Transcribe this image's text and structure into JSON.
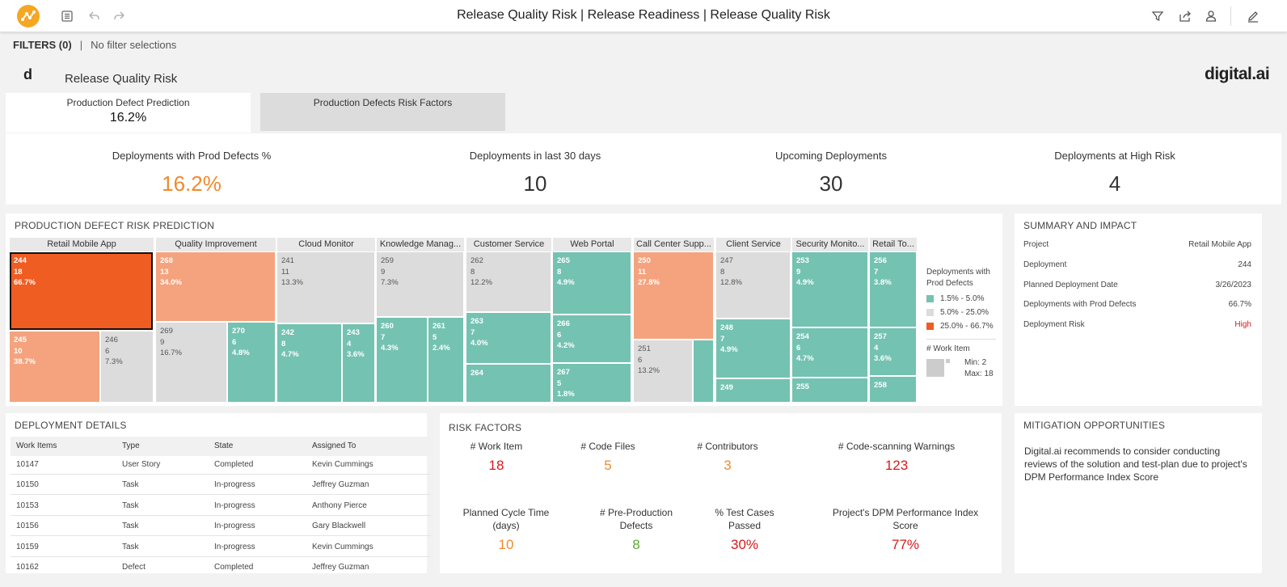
{
  "topbar": {
    "title": "Release Quality Risk | Release Readiness | Release Quality Risk",
    "icons": [
      "app-logo",
      "list-icon",
      "undo-icon",
      "redo-icon",
      "filter-icon",
      "export-icon",
      "user-icon",
      "edit-icon"
    ]
  },
  "filters": {
    "label": "FILTERS (0)",
    "separator": "|",
    "value": "No filter selections"
  },
  "header": {
    "brand_mark": "d",
    "page_title": "Release Quality Risk",
    "brand_logo": "digital.ai"
  },
  "tabs": [
    {
      "label": "Production Defect Prediction",
      "value": "16.2%"
    },
    {
      "label": "Production Defects Risk Factors"
    }
  ],
  "kpis": [
    {
      "label": "Deployments with Prod Defects %",
      "value": "16.2%",
      "color": "#f08a2c"
    },
    {
      "label": "Deployments in last 30 days",
      "value": "10",
      "color": "#333333"
    },
    {
      "label": "Upcoming Deployments",
      "value": "30",
      "color": "#333333"
    },
    {
      "label": "Deployments at High Risk",
      "value": "4",
      "color": "#333333"
    }
  ],
  "treemap": {
    "title": "PRODUCTION DEFECT RISK PREDICTION",
    "colors": {
      "o": "#ef5d22",
      "p": "#f4a37e",
      "g": "#dcdcdc",
      "t": "#74c2b2"
    },
    "groups": [
      {
        "name": "Retail Mobile App",
        "cells": [
          {
            "id": "244",
            "items": "18",
            "pct": "66.7%",
            "c": "o",
            "selected": true
          },
          {
            "id": "245",
            "items": "10",
            "pct": "38.7%",
            "c": "p"
          },
          {
            "id": "246",
            "items": "6",
            "pct": "7.3%",
            "c": "g"
          }
        ]
      },
      {
        "name": "Quality Improvement",
        "cells": [
          {
            "id": "268",
            "items": "13",
            "pct": "34.0%",
            "c": "p"
          },
          {
            "id": "269",
            "items": "9",
            "pct": "16.7%",
            "c": "g"
          },
          {
            "id": "270",
            "items": "6",
            "pct": "4.8%",
            "c": "t"
          }
        ]
      },
      {
        "name": "Cloud Monitor",
        "cells": [
          {
            "id": "241",
            "items": "11",
            "pct": "13.3%",
            "c": "g"
          },
          {
            "id": "242",
            "items": "8",
            "pct": "4.7%",
            "c": "t"
          },
          {
            "id": "243",
            "items": "4",
            "pct": "3.6%",
            "c": "t"
          }
        ]
      },
      {
        "name": "Knowledge Manag...",
        "cells": [
          {
            "id": "259",
            "items": "9",
            "pct": "7.3%",
            "c": "g"
          },
          {
            "id": "260",
            "items": "7",
            "pct": "4.3%",
            "c": "t"
          },
          {
            "id": "261",
            "items": "5",
            "pct": "2.4%",
            "c": "t"
          }
        ]
      },
      {
        "name": "Customer Service",
        "cells": [
          {
            "id": "262",
            "items": "8",
            "pct": "12.2%",
            "c": "g"
          },
          {
            "id": "263",
            "items": "7",
            "pct": "4.0%",
            "c": "t"
          },
          {
            "id": "264",
            "items": "",
            "pct": "",
            "c": "t"
          }
        ]
      },
      {
        "name": "Web Portal",
        "cells": [
          {
            "id": "265",
            "items": "8",
            "pct": "4.9%",
            "c": "t"
          },
          {
            "id": "266",
            "items": "6",
            "pct": "4.2%",
            "c": "t"
          },
          {
            "id": "267",
            "items": "5",
            "pct": "1.8%",
            "c": "t"
          }
        ]
      },
      {
        "name": "Call Center Supp...",
        "cells": [
          {
            "id": "250",
            "items": "11",
            "pct": "27.8%",
            "c": "p"
          },
          {
            "id": "251",
            "items": "6",
            "pct": "13.2%",
            "c": "g"
          },
          {
            "id": "",
            "items": "",
            "pct": "",
            "c": "t"
          }
        ]
      },
      {
        "name": "Client Service",
        "cells": [
          {
            "id": "247",
            "items": "8",
            "pct": "12.8%",
            "c": "g"
          },
          {
            "id": "248",
            "items": "7",
            "pct": "4.9%",
            "c": "t"
          },
          {
            "id": "249",
            "items": "",
            "pct": "",
            "c": "t"
          }
        ]
      },
      {
        "name": "Security Monito...",
        "cells": [
          {
            "id": "253",
            "items": "9",
            "pct": "4.9%",
            "c": "t"
          },
          {
            "id": "254",
            "items": "6",
            "pct": "4.7%",
            "c": "t"
          },
          {
            "id": "255",
            "items": "",
            "pct": "",
            "c": "t"
          }
        ]
      },
      {
        "name": "Retail To...",
        "cells": [
          {
            "id": "256",
            "items": "7",
            "pct": "3.8%",
            "c": "t"
          },
          {
            "id": "257",
            "items": "4",
            "pct": "3.6%",
            "c": "t"
          },
          {
            "id": "258",
            "items": "",
            "pct": "",
            "c": "t"
          }
        ]
      }
    ],
    "legend": {
      "title": "Deployments with Prod Defects",
      "ranges": [
        {
          "label": "1.5% - 5.0%",
          "color": "#74c2b2"
        },
        {
          "label": "5.0% - 25.0%",
          "color": "#dcdcdc"
        },
        {
          "label": "25.0% - 66.7%",
          "color": "#ef5d22"
        }
      ],
      "size_title": "# Work Item",
      "min_label": "Min: 2",
      "max_label": "Max: 18"
    }
  },
  "summary": {
    "title": "SUMMARY AND IMPACT",
    "rows": [
      {
        "label": "Project",
        "value": "Retail Mobile App",
        "color": "#444444"
      },
      {
        "label": "Deployment",
        "value": "244",
        "color": "#444444"
      },
      {
        "label": "Planned Deployment Date",
        "value": "3/26/2023",
        "color": "#444444"
      },
      {
        "label": "Deployments with Prod Defects",
        "value": "66.7%",
        "color": "#444444"
      },
      {
        "label": "Deployment Risk",
        "value": "High",
        "color": "#d7191c"
      }
    ]
  },
  "deployment_details": {
    "title": "DEPLOYMENT DETAILS",
    "columns": [
      "Work Items",
      "Type",
      "State",
      "Assigned To"
    ],
    "rows": [
      [
        "10147",
        "User Story",
        "Completed",
        "Kevin Cummings"
      ],
      [
        "10150",
        "Task",
        "In-progress",
        "Jeffrey Guzman"
      ],
      [
        "10153",
        "Task",
        "In-progress",
        "Anthony Pierce"
      ],
      [
        "10156",
        "Task",
        "In-progress",
        "Gary Blackwell"
      ],
      [
        "10159",
        "Task",
        "In-progress",
        "Kevin Cummings"
      ],
      [
        "10162",
        "Defect",
        "Completed",
        "Jeffrey Guzman"
      ]
    ]
  },
  "risk_factors": {
    "title": "RISK FACTORS",
    "items": [
      {
        "label": "# Work Item",
        "value": "18",
        "color": "#d7191c"
      },
      {
        "label": "# Code Files",
        "value": "5",
        "color": "#f08a2c"
      },
      {
        "label": "# Contributors",
        "value": "3",
        "color": "#f08a2c"
      },
      {
        "label": "# Code-scanning Warnings",
        "value": "123",
        "color": "#d7191c"
      },
      {
        "label": "Planned Cycle Time (days)",
        "value": "10",
        "color": "#f08a2c"
      },
      {
        "label": "# Pre-Production Defects",
        "value": "8",
        "color": "#5aac2e"
      },
      {
        "label": "% Test Cases Passed",
        "value": "30%",
        "color": "#d7191c"
      },
      {
        "label": "Project's DPM Performance Index Score",
        "value": "77%",
        "color": "#d7191c"
      }
    ]
  },
  "mitigation": {
    "title": "MITIGATION OPPORTUNITIES",
    "text": "Digital.ai recommends to consider conducting reviews of the solution and test-plan due to project's DPM Performance Index Score"
  }
}
